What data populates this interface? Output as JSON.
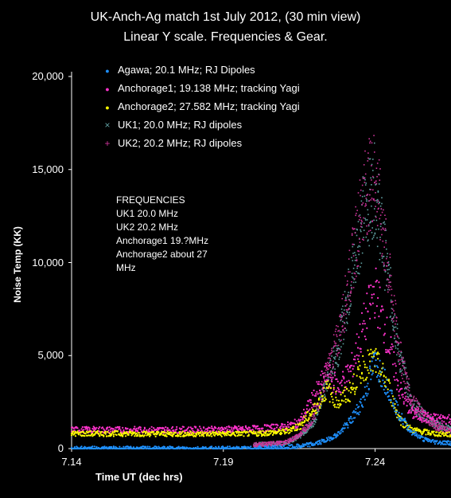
{
  "chart_data": {
    "type": "scatter",
    "title": "UK-Anch-Ag match 1st July 2012, (30 min view)",
    "subtitle": "Linear Y scale. Frequencies & Gear.",
    "xlabel": "Time UT (dec hrs)",
    "ylabel": "Noise Temp (KK)",
    "xlim": [
      7.14,
      7.265
    ],
    "ylim": [
      0,
      20000
    ],
    "x_ticks": [
      "7.14",
      "7.19",
      "7.24"
    ],
    "y_ticks": [
      "0",
      "5,000",
      "10,000",
      "15,000",
      "20,000"
    ],
    "grid": false,
    "legend_position": "top-left",
    "annotation": [
      "FREQUENCIES",
      "UK1 20.0 MHz",
      "UK2 20.2 MHz",
      "Anchorage1 19.?MHz",
      "Anchorage2 about 27",
      "MHz"
    ],
    "series": [
      {
        "name": "Agawa; 20.1 MHz; RJ Dipoles",
        "color": "#1e90ff",
        "marker": "dot",
        "x": [
          7.14,
          7.16,
          7.18,
          7.2,
          7.21,
          7.215,
          7.22,
          7.224,
          7.228,
          7.232,
          7.236,
          7.24,
          7.244,
          7.248,
          7.252,
          7.256,
          7.26,
          7.265
        ],
        "y": [
          0,
          0,
          0,
          0,
          50,
          120,
          250,
          450,
          800,
          1500,
          2600,
          4700,
          3400,
          1800,
          900,
          500,
          350,
          300
        ]
      },
      {
        "name": "Anchorage1; 19.138 MHz; tracking Yagi",
        "color": "#ff33cc",
        "marker": "dot",
        "x": [
          7.14,
          7.16,
          7.18,
          7.2,
          7.21,
          7.215,
          7.22,
          7.224,
          7.228,
          7.232,
          7.236,
          7.24,
          7.244,
          7.248,
          7.252,
          7.256,
          7.26,
          7.265
        ],
        "y": [
          1000,
          1000,
          1000,
          1050,
          1150,
          1400,
          2800,
          4000,
          3300,
          4200,
          6500,
          8500,
          6000,
          3200,
          1900,
          1700,
          1600,
          1600
        ]
      },
      {
        "name": "Anchorage2; 27.582 MHz; tracking Yagi",
        "color": "#ffff00",
        "marker": "dot",
        "x": [
          7.14,
          7.16,
          7.18,
          7.2,
          7.21,
          7.215,
          7.22,
          7.224,
          7.228,
          7.232,
          7.236,
          7.24,
          7.244,
          7.248,
          7.252,
          7.256,
          7.26,
          7.265
        ],
        "y": [
          800,
          800,
          780,
          800,
          900,
          1200,
          2100,
          3200,
          2500,
          3100,
          4400,
          4700,
          3500,
          1600,
          1000,
          900,
          800,
          750
        ]
      },
      {
        "name": "UK1; 20.0 MHz; RJ dipoles",
        "color": "#5f9ea0",
        "marker": "x",
        "x": [
          7.2,
          7.21,
          7.215,
          7.22,
          7.224,
          7.228,
          7.232,
          7.236,
          7.24,
          7.244,
          7.248,
          7.252,
          7.256,
          7.26,
          7.265
        ],
        "y": [
          200,
          300,
          600,
          1500,
          3500,
          5500,
          9000,
          12500,
          14000,
          9500,
          5000,
          2500,
          1800,
          1300,
          1000
        ]
      },
      {
        "name": "UK2; 20.2 MHz; RJ dipoles",
        "color": "#cc3399",
        "marker": "+",
        "x": [
          7.2,
          7.21,
          7.215,
          7.22,
          7.224,
          7.228,
          7.232,
          7.236,
          7.24,
          7.244,
          7.248,
          7.252,
          7.256,
          7.26,
          7.265
        ],
        "y": [
          200,
          300,
          700,
          1700,
          4000,
          6000,
          9500,
          13500,
          14800,
          10000,
          5200,
          2600,
          1800,
          1200,
          900
        ]
      }
    ]
  }
}
